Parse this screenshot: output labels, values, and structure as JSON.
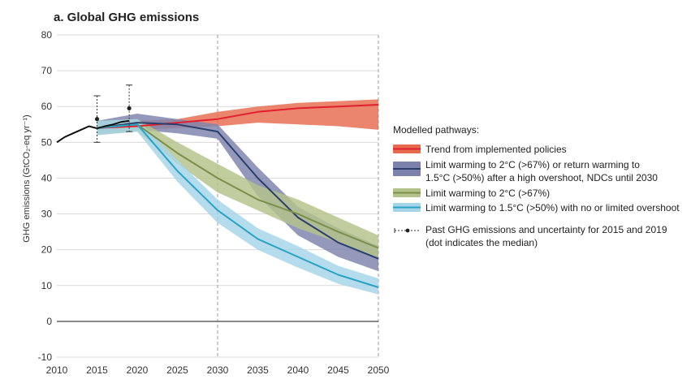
{
  "chart_data": {
    "type": "line",
    "title": "a. Global GHG emissions",
    "ylabel": "GHG emissions (GtCO₂-eq yr⁻¹)",
    "xlabel": "",
    "xlim": [
      2010,
      2050
    ],
    "ylim": [
      -10,
      80
    ],
    "x_ticks": [
      2010,
      2015,
      2020,
      2025,
      2030,
      2035,
      2040,
      2045,
      2050
    ],
    "y_ticks": [
      -10,
      0,
      10,
      20,
      30,
      40,
      50,
      60,
      70,
      80
    ],
    "reference_lines": {
      "vertical_x": [
        2030,
        2050
      ],
      "horizontal_y": 0
    },
    "legend": {
      "title": "Modelled pathways:",
      "entries": [
        {
          "id": "policies",
          "lines": [
            "Trend from implemented policies"
          ]
        },
        {
          "id": "c3_overshoot",
          "lines": [
            "Limit warming to 2°C (>67%) or return warming to",
            "1.5°C (>50%) after a high overshoot, NDCs until 2030"
          ]
        },
        {
          "id": "c3",
          "lines": [
            "Limit warming to 2°C (>67%)"
          ]
        },
        {
          "id": "c1",
          "lines": [
            "Limit warming to 1.5°C (>50%) with no or limited overshoot"
          ]
        },
        {
          "id": "past",
          "lines": [
            "Past GHG emissions and uncertainty for 2015 and 2019",
            "(dot indicates the median)"
          ]
        }
      ]
    },
    "historical": {
      "x": [
        2010,
        2011,
        2012,
        2013,
        2014,
        2015,
        2016,
        2017,
        2018,
        2019
      ],
      "values": [
        50,
        51.5,
        52.5,
        53.5,
        54.5,
        53.9,
        54.5,
        55.0,
        55.7,
        56.0
      ]
    },
    "uncertainty": [
      {
        "year": 2015,
        "median": 56.5,
        "low": 50,
        "high": 63
      },
      {
        "year": 2019,
        "median": 59.5,
        "low": 53,
        "high": 66
      }
    ],
    "series": [
      {
        "id": "policies",
        "name": "Trend from implemented policies",
        "line_color": "#e0202e",
        "band_color": "#e86a4e",
        "x": [
          2015,
          2020,
          2025,
          2030,
          2035,
          2040,
          2045,
          2050
        ],
        "median": [
          54,
          54.5,
          55.5,
          56.5,
          58.5,
          59.5,
          60,
          60.5
        ],
        "lower": [
          53,
          53.5,
          54,
          54.5,
          55.5,
          55,
          54.5,
          53.5
        ],
        "upper": [
          55.5,
          56,
          56.5,
          58.5,
          60,
          61,
          61.5,
          62
        ]
      },
      {
        "id": "c3_overshoot",
        "name": "Limit warming to 2°C (>67%) or return warming to 1.5°C (>50%) after a high overshoot, NDCs until 2030",
        "line_color": "#2a3f6b",
        "band_color": "#7d82ad",
        "x": [
          2015,
          2020,
          2025,
          2030,
          2035,
          2040,
          2045,
          2050
        ],
        "median": [
          54,
          55.5,
          55,
          53,
          40,
          29,
          22,
          17.5
        ],
        "lower": [
          52.5,
          53.5,
          52.5,
          51,
          35,
          24,
          18,
          14
        ],
        "upper": [
          56,
          58,
          56.5,
          55,
          43,
          32,
          26,
          21
        ]
      },
      {
        "id": "c3",
        "name": "Limit warming to 2°C (>67%)",
        "line_color": "#7b8f4a",
        "band_color": "#b3c28a",
        "x": [
          2015,
          2020,
          2025,
          2030,
          2035,
          2040,
          2045,
          2050
        ],
        "median": [
          54,
          55,
          47,
          40,
          34,
          30,
          25,
          20.5
        ],
        "lower": [
          52,
          53,
          44,
          36,
          31,
          26,
          22,
          17.5
        ],
        "upper": [
          56,
          56.5,
          50,
          44,
          38,
          34,
          29,
          24
        ]
      },
      {
        "id": "c1",
        "name": "Limit warming to 1.5°C (>50%) with no or limited overshoot",
        "line_color": "#29a3c4",
        "band_color": "#a5d4e9",
        "x": [
          2015,
          2020,
          2025,
          2030,
          2035,
          2040,
          2045,
          2050
        ],
        "median": [
          54,
          55,
          42,
          31,
          23,
          18,
          13,
          9.5
        ],
        "lower": [
          52,
          53,
          39,
          27.5,
          20,
          15,
          10.5,
          7.5
        ],
        "upper": [
          56,
          56.5,
          45,
          34,
          26,
          21,
          15.5,
          12
        ]
      }
    ]
  }
}
